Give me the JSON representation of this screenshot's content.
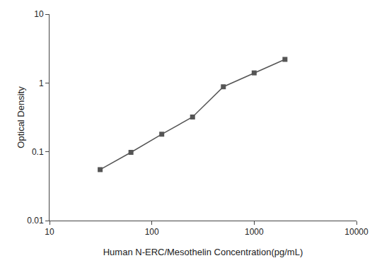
{
  "chart_data": {
    "type": "line",
    "x": [
      31.25,
      62.5,
      125,
      250,
      500,
      1000,
      2000
    ],
    "values": [
      0.055,
      0.098,
      0.18,
      0.32,
      0.88,
      1.4,
      2.2
    ],
    "xlabel": "Human N-ERC/Mesothelin Concentration(pg/mL)",
    "ylabel": "Optical Density",
    "xlim": [
      10,
      10000
    ],
    "ylim": [
      0.01,
      10
    ],
    "xticks": [
      10,
      100,
      1000,
      10000
    ],
    "yticks": [
      0.01,
      0.1,
      1,
      10
    ],
    "log": true,
    "grid": false,
    "color": "#555555",
    "marker": "square"
  }
}
